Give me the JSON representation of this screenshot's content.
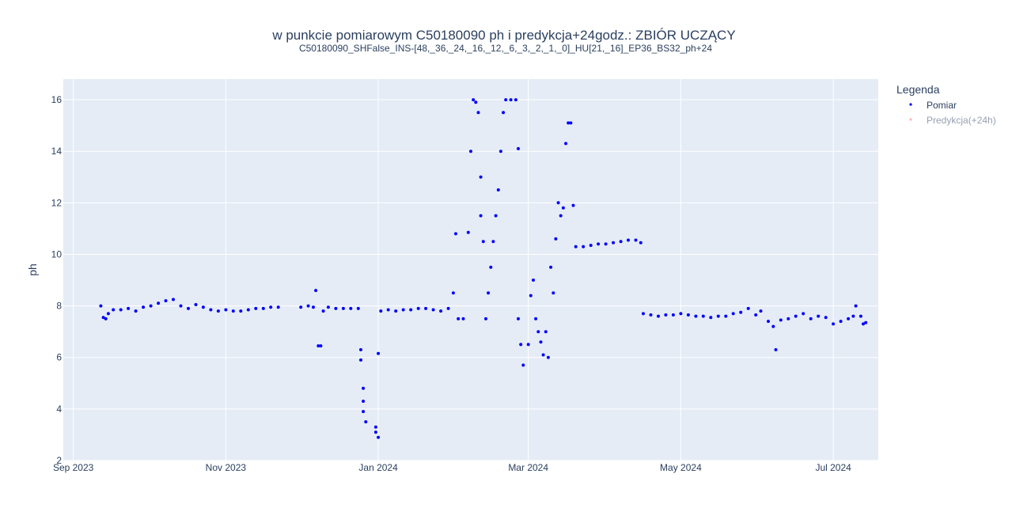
{
  "chart_data": {
    "type": "scatter",
    "title": "w punkcie pomiarowym C50180090 ph i predykcja+24godz.: ZBIÓR UCZĄCY",
    "subtitle": "C50180090_SHFalse_INS-[48,_36,_24,_16,_12,_6,_3,_2,_1,_0]_HU[21,_16]_EP36_BS32_ph+24",
    "xlabel": "",
    "ylabel": "ph",
    "x_type": "date",
    "xlim": [
      "2023-08-28",
      "2024-07-19"
    ],
    "ylim": [
      2,
      16.8
    ],
    "x_ticks": [
      {
        "date": "2023-09-01",
        "label": "Sep 2023"
      },
      {
        "date": "2023-11-01",
        "label": "Nov 2023"
      },
      {
        "date": "2024-01-01",
        "label": "Jan 2024"
      },
      {
        "date": "2024-03-01",
        "label": "Mar 2024"
      },
      {
        "date": "2024-05-01",
        "label": "May 2024"
      },
      {
        "date": "2024-07-01",
        "label": "Jul 2024"
      }
    ],
    "y_ticks": [
      2,
      4,
      6,
      8,
      10,
      12,
      14,
      16
    ],
    "grid": true,
    "legend": {
      "title": "Legenda",
      "position": "right",
      "entries": [
        {
          "name": "Pomiar",
          "color": "#0000ff",
          "visible": true
        },
        {
          "name": "Predykcja(+24h)",
          "color": "#ff6e6e",
          "visible": false
        }
      ]
    },
    "series": [
      {
        "name": "Pomiar",
        "color": "#0000ff",
        "points": [
          [
            "2023-09-12",
            8.0
          ],
          [
            "2023-09-13",
            7.55
          ],
          [
            "2023-09-14",
            7.5
          ],
          [
            "2023-09-15",
            7.7
          ],
          [
            "2023-09-17",
            7.85
          ],
          [
            "2023-09-20",
            7.85
          ],
          [
            "2023-09-23",
            7.9
          ],
          [
            "2023-09-26",
            7.8
          ],
          [
            "2023-09-29",
            7.95
          ],
          [
            "2023-10-02",
            8.0
          ],
          [
            "2023-10-05",
            8.1
          ],
          [
            "2023-10-08",
            8.2
          ],
          [
            "2023-10-11",
            8.25
          ],
          [
            "2023-10-14",
            8.0
          ],
          [
            "2023-10-17",
            7.9
          ],
          [
            "2023-10-20",
            8.05
          ],
          [
            "2023-10-23",
            7.95
          ],
          [
            "2023-10-26",
            7.85
          ],
          [
            "2023-10-29",
            7.8
          ],
          [
            "2023-11-01",
            7.85
          ],
          [
            "2023-11-04",
            7.8
          ],
          [
            "2023-11-07",
            7.8
          ],
          [
            "2023-11-10",
            7.85
          ],
          [
            "2023-11-13",
            7.9
          ],
          [
            "2023-11-16",
            7.9
          ],
          [
            "2023-11-19",
            7.95
          ],
          [
            "2023-11-22",
            7.95
          ],
          [
            "2023-12-01",
            7.95
          ],
          [
            "2023-12-04",
            8.0
          ],
          [
            "2023-12-06",
            7.95
          ],
          [
            "2023-12-07",
            8.6
          ],
          [
            "2023-12-08",
            6.45
          ],
          [
            "2023-12-09",
            6.45
          ],
          [
            "2023-12-10",
            7.8
          ],
          [
            "2023-12-12",
            7.95
          ],
          [
            "2023-12-15",
            7.9
          ],
          [
            "2023-12-18",
            7.9
          ],
          [
            "2023-12-21",
            7.9
          ],
          [
            "2023-12-24",
            7.9
          ],
          [
            "2023-12-25",
            6.3
          ],
          [
            "2023-12-25",
            5.9
          ],
          [
            "2023-12-26",
            4.8
          ],
          [
            "2023-12-26",
            4.3
          ],
          [
            "2023-12-26",
            3.9
          ],
          [
            "2023-12-27",
            3.5
          ],
          [
            "2023-12-31",
            3.3
          ],
          [
            "2023-12-31",
            3.1
          ],
          [
            "2024-01-01",
            2.9
          ],
          [
            "2024-01-01",
            6.15
          ],
          [
            "2024-01-02",
            7.8
          ],
          [
            "2024-01-05",
            7.85
          ],
          [
            "2024-01-08",
            7.8
          ],
          [
            "2024-01-11",
            7.85
          ],
          [
            "2024-01-14",
            7.85
          ],
          [
            "2024-01-17",
            7.9
          ],
          [
            "2024-01-20",
            7.9
          ],
          [
            "2024-01-23",
            7.85
          ],
          [
            "2024-01-26",
            7.8
          ],
          [
            "2024-01-29",
            7.9
          ],
          [
            "2024-01-31",
            8.5
          ],
          [
            "2024-02-01",
            10.8
          ],
          [
            "2024-02-02",
            7.5
          ],
          [
            "2024-02-04",
            7.5
          ],
          [
            "2024-02-06",
            10.85
          ],
          [
            "2024-02-07",
            14.0
          ],
          [
            "2024-02-08",
            16.0
          ],
          [
            "2024-02-09",
            15.9
          ],
          [
            "2024-02-10",
            15.5
          ],
          [
            "2024-02-11",
            13.0
          ],
          [
            "2024-02-11",
            11.5
          ],
          [
            "2024-02-12",
            10.5
          ],
          [
            "2024-02-13",
            7.5
          ],
          [
            "2024-02-14",
            8.5
          ],
          [
            "2024-02-15",
            9.5
          ],
          [
            "2024-02-16",
            10.5
          ],
          [
            "2024-02-17",
            11.5
          ],
          [
            "2024-02-18",
            12.5
          ],
          [
            "2024-02-19",
            14.0
          ],
          [
            "2024-02-20",
            15.5
          ],
          [
            "2024-02-21",
            16.0
          ],
          [
            "2024-02-23",
            16.0
          ],
          [
            "2024-02-25",
            16.0
          ],
          [
            "2024-02-26",
            14.1
          ],
          [
            "2024-02-26",
            7.5
          ],
          [
            "2024-02-27",
            6.5
          ],
          [
            "2024-02-28",
            5.7
          ],
          [
            "2024-03-01",
            6.5
          ],
          [
            "2024-03-02",
            8.4
          ],
          [
            "2024-03-03",
            9.0
          ],
          [
            "2024-03-04",
            7.5
          ],
          [
            "2024-03-05",
            7.0
          ],
          [
            "2024-03-06",
            6.6
          ],
          [
            "2024-03-07",
            6.1
          ],
          [
            "2024-03-08",
            7.0
          ],
          [
            "2024-03-09",
            6.0
          ],
          [
            "2024-03-10",
            9.5
          ],
          [
            "2024-03-11",
            8.5
          ],
          [
            "2024-03-12",
            10.6
          ],
          [
            "2024-03-13",
            12.0
          ],
          [
            "2024-03-14",
            11.5
          ],
          [
            "2024-03-15",
            11.8
          ],
          [
            "2024-03-16",
            14.3
          ],
          [
            "2024-03-17",
            15.1
          ],
          [
            "2024-03-18",
            15.1
          ],
          [
            "2024-03-19",
            11.9
          ],
          [
            "2024-03-20",
            10.3
          ],
          [
            "2024-03-23",
            10.3
          ],
          [
            "2024-03-26",
            10.35
          ],
          [
            "2024-03-29",
            10.4
          ],
          [
            "2024-04-01",
            10.4
          ],
          [
            "2024-04-04",
            10.45
          ],
          [
            "2024-04-07",
            10.5
          ],
          [
            "2024-04-10",
            10.55
          ],
          [
            "2024-04-13",
            10.55
          ],
          [
            "2024-04-15",
            10.45
          ],
          [
            "2024-04-16",
            7.7
          ],
          [
            "2024-04-19",
            7.65
          ],
          [
            "2024-04-22",
            7.6
          ],
          [
            "2024-04-25",
            7.65
          ],
          [
            "2024-04-28",
            7.65
          ],
          [
            "2024-05-01",
            7.7
          ],
          [
            "2024-05-04",
            7.65
          ],
          [
            "2024-05-07",
            7.6
          ],
          [
            "2024-05-10",
            7.6
          ],
          [
            "2024-05-13",
            7.55
          ],
          [
            "2024-05-16",
            7.6
          ],
          [
            "2024-05-19",
            7.6
          ],
          [
            "2024-05-22",
            7.7
          ],
          [
            "2024-05-25",
            7.75
          ],
          [
            "2024-05-28",
            7.9
          ],
          [
            "2024-05-31",
            7.65
          ],
          [
            "2024-06-02",
            7.8
          ],
          [
            "2024-06-05",
            7.4
          ],
          [
            "2024-06-07",
            7.2
          ],
          [
            "2024-06-08",
            6.3
          ],
          [
            "2024-06-10",
            7.45
          ],
          [
            "2024-06-13",
            7.5
          ],
          [
            "2024-06-16",
            7.6
          ],
          [
            "2024-06-19",
            7.7
          ],
          [
            "2024-06-22",
            7.5
          ],
          [
            "2024-06-25",
            7.6
          ],
          [
            "2024-06-28",
            7.55
          ],
          [
            "2024-07-01",
            7.3
          ],
          [
            "2024-07-04",
            7.4
          ],
          [
            "2024-07-07",
            7.5
          ],
          [
            "2024-07-09",
            7.6
          ],
          [
            "2024-07-10",
            8.0
          ],
          [
            "2024-07-12",
            7.6
          ],
          [
            "2024-07-13",
            7.3
          ],
          [
            "2024-07-14",
            7.35
          ]
        ]
      },
      {
        "name": "Predykcja(+24h)",
        "color": "#ff6e6e",
        "points": []
      }
    ]
  }
}
